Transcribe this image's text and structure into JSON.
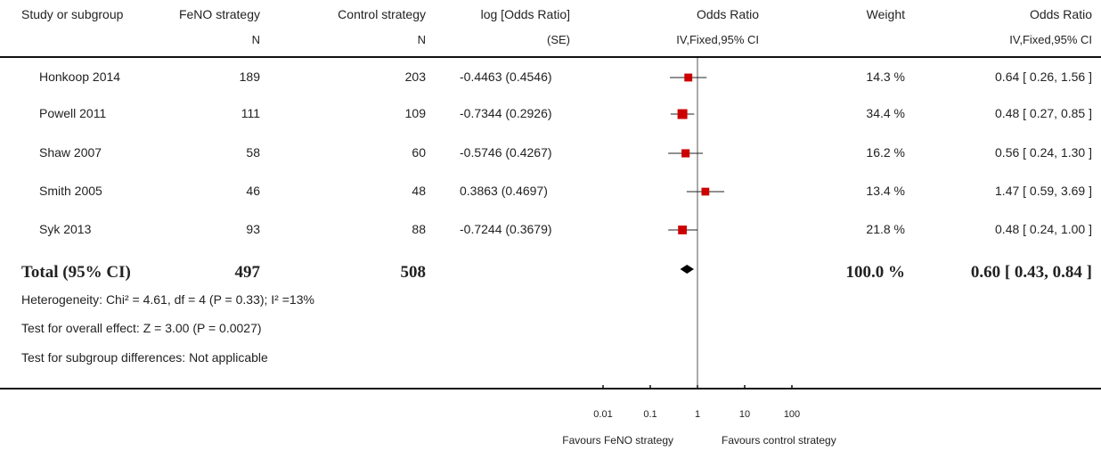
{
  "headers": {
    "study": "Study or subgroup",
    "feno": "FeNO strategy",
    "feno_sub": "N",
    "control": "Control strategy",
    "control_sub": "N",
    "logor": "log [Odds Ratio]",
    "logor_sub": "(SE)",
    "or_plot": "Odds Ratio",
    "or_plot_sub": "IV,Fixed,95% CI",
    "weight": "Weight",
    "or_text": "Odds Ratio",
    "or_text_sub": "IV,Fixed,95% CI"
  },
  "studies": [
    {
      "name": "Honkoop 2014",
      "feno_n": "189",
      "control_n": "203",
      "logor_se": "-0.4463 (0.4546)",
      "weight": "14.3 %",
      "or_ci": "0.64 [ 0.26, 1.56 ]"
    },
    {
      "name": "Powell 2011",
      "feno_n": "111",
      "control_n": "109",
      "logor_se": "-0.7344 (0.2926)",
      "weight": "34.4 %",
      "or_ci": "0.48 [ 0.27, 0.85 ]"
    },
    {
      "name": "Shaw 2007",
      "feno_n": "58",
      "control_n": "60",
      "logor_se": "-0.5746 (0.4267)",
      "weight": "16.2 %",
      "or_ci": "0.56 [ 0.24, 1.30 ]"
    },
    {
      "name": "Smith 2005",
      "feno_n": "46",
      "control_n": "48",
      "logor_se": "0.3863 (0.4697)",
      "weight": "13.4 %",
      "or_ci": "1.47 [ 0.59, 3.69 ]"
    },
    {
      "name": "Syk 2013",
      "feno_n": "93",
      "control_n": "88",
      "logor_se": "-0.7244 (0.3679)",
      "weight": "21.8 %",
      "or_ci": "0.48 [ 0.24, 1.00 ]"
    }
  ],
  "total": {
    "label": "Total (95% CI)",
    "feno_n": "497",
    "control_n": "508",
    "weight": "100.0 %",
    "or_ci": "0.60 [ 0.43, 0.84 ]"
  },
  "footnotes": {
    "heterogeneity": "Heterogeneity: Chi² = 4.61, df = 4 (P = 0.33); I² =13%",
    "overall": "Test for overall effect: Z = 3.00 (P = 0.0027)",
    "subgroup": "Test for subgroup differences: Not applicable"
  },
  "favours": {
    "left": "Favours FeNO strategy",
    "right": "Favours control strategy"
  },
  "chart_data": {
    "type": "forest",
    "x_scale": "log10",
    "xlim": [
      0.01,
      100
    ],
    "x_ticks": [
      0.01,
      0.1,
      1,
      10,
      100
    ],
    "x_tick_labels": [
      "0.01",
      "0.1",
      "1",
      "10",
      "100"
    ],
    "null_line": 1,
    "points": [
      {
        "or": 0.64,
        "lower": 0.26,
        "upper": 1.56,
        "weight": 14.3
      },
      {
        "or": 0.48,
        "lower": 0.27,
        "upper": 0.85,
        "weight": 34.4
      },
      {
        "or": 0.56,
        "lower": 0.24,
        "upper": 1.3,
        "weight": 16.2
      },
      {
        "or": 1.47,
        "lower": 0.59,
        "upper": 3.69,
        "weight": 13.4
      },
      {
        "or": 0.48,
        "lower": 0.24,
        "upper": 1.0,
        "weight": 21.8
      }
    ],
    "pooled": {
      "or": 0.6,
      "lower": 0.43,
      "upper": 0.84
    },
    "marker_color": "#cc0000"
  }
}
